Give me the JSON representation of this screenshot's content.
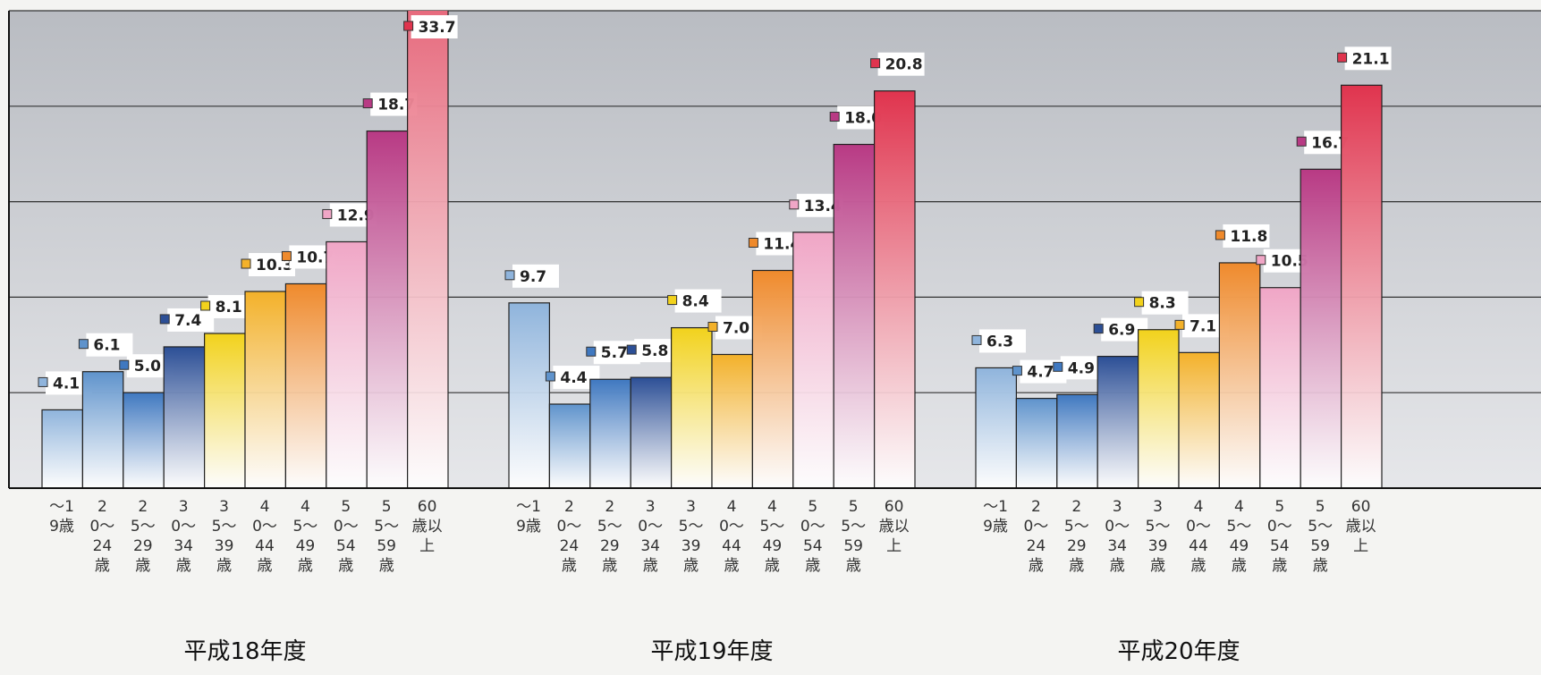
{
  "chart_data": {
    "type": "bar",
    "categories": [
      "〜19歳",
      "20〜24歳",
      "25〜29歳",
      "30〜34歳",
      "35〜39歳",
      "40〜44歳",
      "45〜49歳",
      "50〜54歳",
      "55〜59歳",
      "60歳以上"
    ],
    "colors": [
      "#8fb4dc",
      "#5f93cc",
      "#3f78c0",
      "#2c4f96",
      "#f2d21c",
      "#f3b12a",
      "#ef8a2c",
      "#f0a6c6",
      "#b83a84",
      "#e0344e"
    ],
    "series": [
      {
        "name": "平成18年度",
        "values": [
          4.1,
          6.1,
          5.0,
          7.4,
          8.1,
          10.3,
          10.7,
          12.9,
          18.7,
          33.7
        ],
        "value_labels": [
          "4.1",
          "6.1",
          "5.0",
          "7.4",
          "8.1",
          "10.3",
          "10.7",
          "12.9",
          "18.7",
          "33.7"
        ]
      },
      {
        "name": "平成19年度",
        "values": [
          9.7,
          4.4,
          5.7,
          5.8,
          8.4,
          7.0,
          11.4,
          13.4,
          18.0,
          20.8
        ],
        "value_labels": [
          "9.7",
          "4.4",
          "5.7",
          "5.8",
          "8.4",
          "7.0",
          "11.4",
          "13.4",
          "18.0",
          "20.8"
        ]
      },
      {
        "name": "平成20年度",
        "values": [
          6.3,
          4.7,
          4.9,
          6.9,
          8.3,
          7.1,
          11.8,
          10.5,
          16.7,
          21.1
        ],
        "value_labels": [
          "6.3",
          "4.7",
          "4.9",
          "6.9",
          "8.3",
          "7.1",
          "11.8",
          "10.5",
          "16.7",
          "21.1"
        ]
      }
    ],
    "ylim": [
      0,
      25
    ],
    "yticks": [
      0,
      5,
      10,
      15,
      20,
      25
    ],
    "grid": true
  }
}
